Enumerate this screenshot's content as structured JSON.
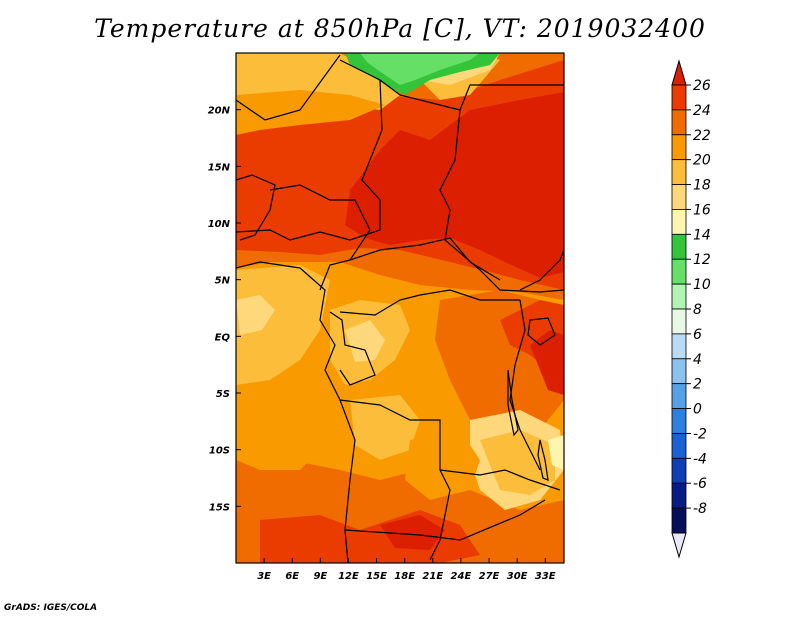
{
  "title": "Temperature at 850hPa [C], VT: 2019032400",
  "footer": "GrADS: IGES/COLA",
  "map": {
    "lon_range": [
      0,
      35
    ],
    "lat_range": [
      -20,
      25
    ],
    "lon_ticks": [
      "3E",
      "6E",
      "9E",
      "12E",
      "15E",
      "18E",
      "21E",
      "24E",
      "27E",
      "30E",
      "33E"
    ],
    "lat_ticks": [
      "20N",
      "15N",
      "10N",
      "5N",
      "EQ",
      "5S",
      "10S",
      "15S"
    ]
  },
  "colorbar": {
    "labels": [
      "26",
      "24",
      "22",
      "20",
      "18",
      "16",
      "14",
      "12",
      "10",
      "8",
      "6",
      "4",
      "2",
      "0",
      "-2",
      "-4",
      "-6",
      "-8"
    ],
    "colors": [
      "#dc1f00",
      "#ea3c00",
      "#f06c00",
      "#f89a00",
      "#fbbd3a",
      "#fed87a",
      "#fef5ae",
      "#34c43a",
      "#66df66",
      "#b2f5b2",
      "#e8f8e4",
      "#b8dcf6",
      "#8ac2f0",
      "#56a0e6",
      "#2f7fe0",
      "#1b60d4",
      "#0f3fb4",
      "#081d82",
      "#06105a",
      "#e8e8f8"
    ]
  },
  "field_colors": {
    "t26": "#dc1f00",
    "t24": "#ea3c00",
    "t22": "#f06c00",
    "t20": "#f89a00",
    "t18": "#fbbd3a",
    "t16": "#fed87a",
    "t14": "#fef5ae",
    "t12": "#34c43a",
    "t10": "#66df66"
  }
}
